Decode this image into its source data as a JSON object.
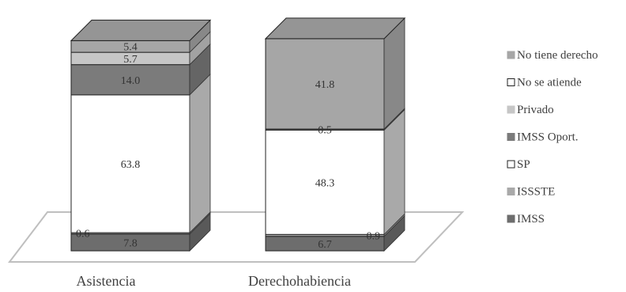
{
  "chart_data": {
    "type": "bar",
    "stacked": true,
    "three_d": true,
    "categories": [
      "Asistencia",
      "Derechohabiencia"
    ],
    "series": [
      {
        "name": "IMSS",
        "values": [
          7.8,
          6.7
        ],
        "color": "#6d6d6d"
      },
      {
        "name": "ISSSTE",
        "values": [
          0.6,
          0.9
        ],
        "color": "#a9a9a9"
      },
      {
        "name": "SP",
        "values": [
          63.8,
          48.3
        ],
        "color": "#ffffff"
      },
      {
        "name": "IMSS Oport.",
        "values": [
          14.0,
          0.5
        ],
        "color": "#7b7b7b"
      },
      {
        "name": "Privado",
        "values": [
          5.7,
          null
        ],
        "color": "#c6c6c6"
      },
      {
        "name": "No se atiende",
        "values": [
          null,
          null
        ],
        "color": "#ffffff"
      },
      {
        "name": "No tiene derecho",
        "values": [
          5.4,
          41.8
        ],
        "color": "#a6a6a6"
      }
    ],
    "legend_position": "right",
    "grid": false,
    "ylim": [
      0,
      100
    ]
  }
}
